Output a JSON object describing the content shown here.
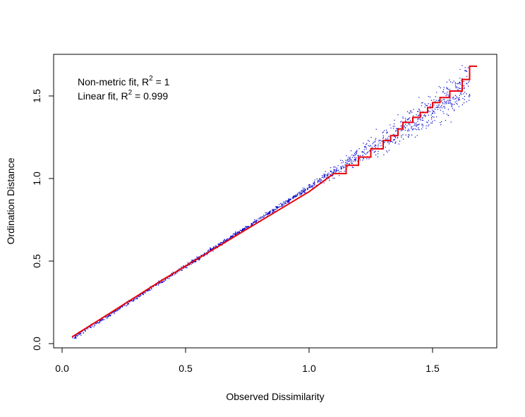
{
  "chart_data": {
    "type": "scatter",
    "title": "",
    "xlabel": "Observed Dissimilarity",
    "ylabel": "Ordination Distance",
    "xlim": [
      0.0,
      1.72
    ],
    "ylim": [
      0.0,
      1.75
    ],
    "xticks": [
      0.0,
      0.5,
      1.0,
      1.5
    ],
    "yticks": [
      0.0,
      0.5,
      1.0,
      1.5
    ],
    "xtick_labels": [
      "0.0",
      "0.5",
      "1.0",
      "1.5"
    ],
    "ytick_labels": [
      "0.0",
      "0.5",
      "1.0",
      "1.5"
    ],
    "grid": false,
    "legend": {
      "placement": "top-left",
      "line1_prefix": "Non-metric fit, R",
      "line1_sup": "2",
      "line1_suffix": " = 1",
      "line2_prefix": "Linear fit, R",
      "line2_sup": "2",
      "line2_suffix": " = 0.999"
    },
    "colors": {
      "points": "#0000cc",
      "step_line": "#e8000b"
    },
    "series": [
      {
        "kind": "points",
        "x_range": [
          0.04,
          1.65
        ],
        "relation": "y approximately equals x with increasing scatter above 1.0"
      },
      {
        "kind": "step-line",
        "x": [
          0.04,
          0.2,
          0.4,
          0.6,
          0.8,
          1.0,
          1.1,
          1.15,
          1.2,
          1.25,
          1.3,
          1.33,
          1.36,
          1.38,
          1.42,
          1.45,
          1.48,
          1.5,
          1.53,
          1.57,
          1.62,
          1.65,
          1.68
        ],
        "y": [
          0.04,
          0.19,
          0.38,
          0.56,
          0.74,
          0.92,
          1.03,
          1.08,
          1.13,
          1.18,
          1.23,
          1.26,
          1.3,
          1.34,
          1.37,
          1.4,
          1.43,
          1.46,
          1.49,
          1.53,
          1.6,
          1.68,
          1.68
        ]
      }
    ]
  }
}
